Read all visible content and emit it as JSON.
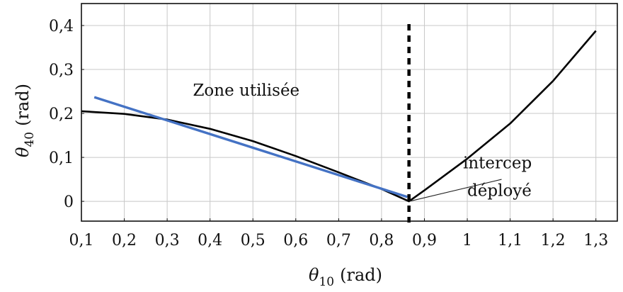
{
  "chart_data": {
    "type": "line",
    "xlabel": {
      "symbol": "θ",
      "sub": "10",
      "unit": "(rad)"
    },
    "ylabel": {
      "symbol": "θ",
      "sub": "40",
      "unit": "(rad)"
    },
    "xlim": [
      0.1,
      1.35
    ],
    "ylim": [
      -0.045,
      0.45
    ],
    "grid": true,
    "x_ticks": [
      0.1,
      0.2,
      0.3,
      0.4,
      0.5,
      0.6,
      0.7,
      0.8,
      0.9,
      1.0,
      1.1,
      1.2,
      1.3
    ],
    "x_tick_labels": [
      "0,1",
      "0,2",
      "0,3",
      "0,4",
      "0,5",
      "0,6",
      "0,7",
      "0,8",
      "0,9",
      "1",
      "1,1",
      "1,2",
      "1,3"
    ],
    "y_ticks": [
      0,
      0.1,
      0.2,
      0.3,
      0.4
    ],
    "y_tick_labels": [
      "0",
      "0,1",
      "0,2",
      "0,3",
      "0,4"
    ],
    "series": [
      {
        "color": "#000000",
        "points": [
          [
            0.1,
            0.205
          ],
          [
            0.2,
            0.199
          ],
          [
            0.3,
            0.186
          ],
          [
            0.4,
            0.165
          ],
          [
            0.5,
            0.137
          ],
          [
            0.6,
            0.103
          ],
          [
            0.7,
            0.066
          ],
          [
            0.8,
            0.028
          ],
          [
            0.864,
            0.0
          ],
          [
            0.9,
            0.025
          ],
          [
            1.0,
            0.097
          ],
          [
            1.1,
            0.177
          ],
          [
            1.2,
            0.274
          ],
          [
            1.3,
            0.388
          ]
        ]
      },
      {
        "color": "#4472c4",
        "points": [
          [
            0.13,
            0.237
          ],
          [
            0.86,
            0.01
          ]
        ]
      }
    ],
    "vline": {
      "x": 0.864,
      "style": "dashed",
      "color": "#000000"
    },
    "annotations": [
      {
        "text": "Zone utilisée",
        "x": 0.36,
        "y": 0.24
      },
      {
        "text": "intercep",
        "x": 0.99,
        "y": 0.075
      },
      {
        "text": "déployé",
        "x": 1.0,
        "y": 0.012
      }
    ],
    "leader_line": {
      "from": [
        0.865,
        0.0
      ],
      "to": [
        1.08,
        0.05
      ]
    }
  }
}
